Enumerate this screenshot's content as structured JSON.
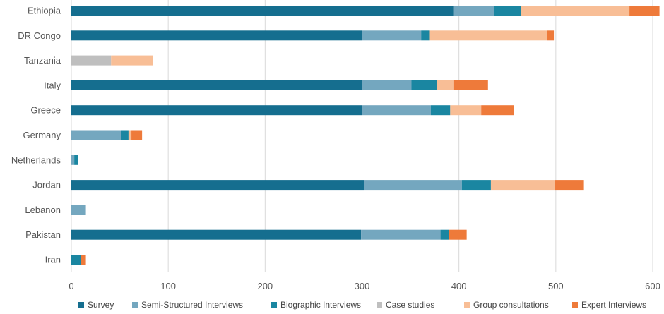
{
  "chart_data": {
    "type": "bar",
    "orientation": "horizontal",
    "stacked": true,
    "categories": [
      "Ethiopia",
      "DR Congo",
      "Tanzania",
      "Italy",
      "Greece",
      "Germany",
      "Netherlands",
      "Jordan",
      "Lebanon",
      "Pakistan",
      "Iran"
    ],
    "series": [
      {
        "name": "Survey",
        "color": "#156E8F",
        "values": [
          395,
          300,
          0,
          300,
          300,
          0,
          0,
          302,
          0,
          299,
          0
        ]
      },
      {
        "name": "Semi-Structured Interviews",
        "color": "#74A7BF",
        "values": [
          41,
          61,
          0,
          51,
          71,
          51,
          3,
          101,
          15,
          82,
          0
        ]
      },
      {
        "name": "Biographic Interviews",
        "color": "#1A86A1",
        "values": [
          28,
          9,
          0,
          26,
          20,
          8,
          4,
          30,
          0,
          9,
          10
        ]
      },
      {
        "name": "Case studies",
        "color": "#BFBFBF",
        "values": [
          0,
          0,
          41,
          0,
          0,
          0,
          0,
          0,
          0,
          0,
          0
        ]
      },
      {
        "name": "Group consultations",
        "color": "#F8BE96",
        "values": [
          112,
          121,
          43,
          18,
          32,
          3,
          0,
          66,
          0,
          0,
          0
        ]
      },
      {
        "name": "Expert Interviews",
        "color": "#EE7A3A",
        "values": [
          31,
          7,
          0,
          35,
          34,
          11,
          0,
          30,
          0,
          18,
          5
        ]
      }
    ],
    "xlim": [
      0,
      600
    ],
    "xticks": [
      0,
      100,
      200,
      300,
      400,
      500,
      600
    ],
    "grid": "vertical",
    "legend_position": "bottom",
    "title": "",
    "xlabel": "",
    "ylabel": ""
  }
}
